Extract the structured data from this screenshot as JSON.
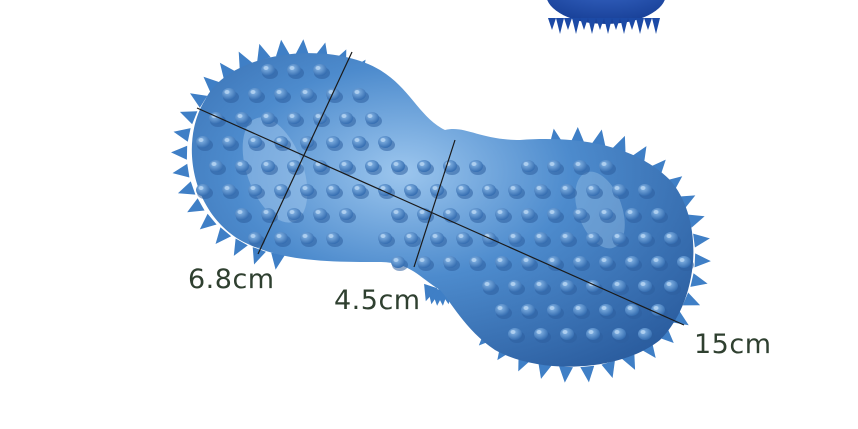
{
  "image": {
    "subject": "blue-spiky-peanut-massage-ball-icon",
    "colors": {
      "ball": "#4a86c8",
      "ball_shadow": "#2f63a6",
      "ball_highlight": "#8fbbe6",
      "spike": "#3f7fc6",
      "secondary_ball": "#1f4fa8",
      "measure_line": "#1a1a1a",
      "label": "#2f4030",
      "background": "#ffffff"
    }
  },
  "dimensions": {
    "width_label": "6.8cm",
    "waist_label": "4.5cm",
    "length_label": "15cm"
  }
}
